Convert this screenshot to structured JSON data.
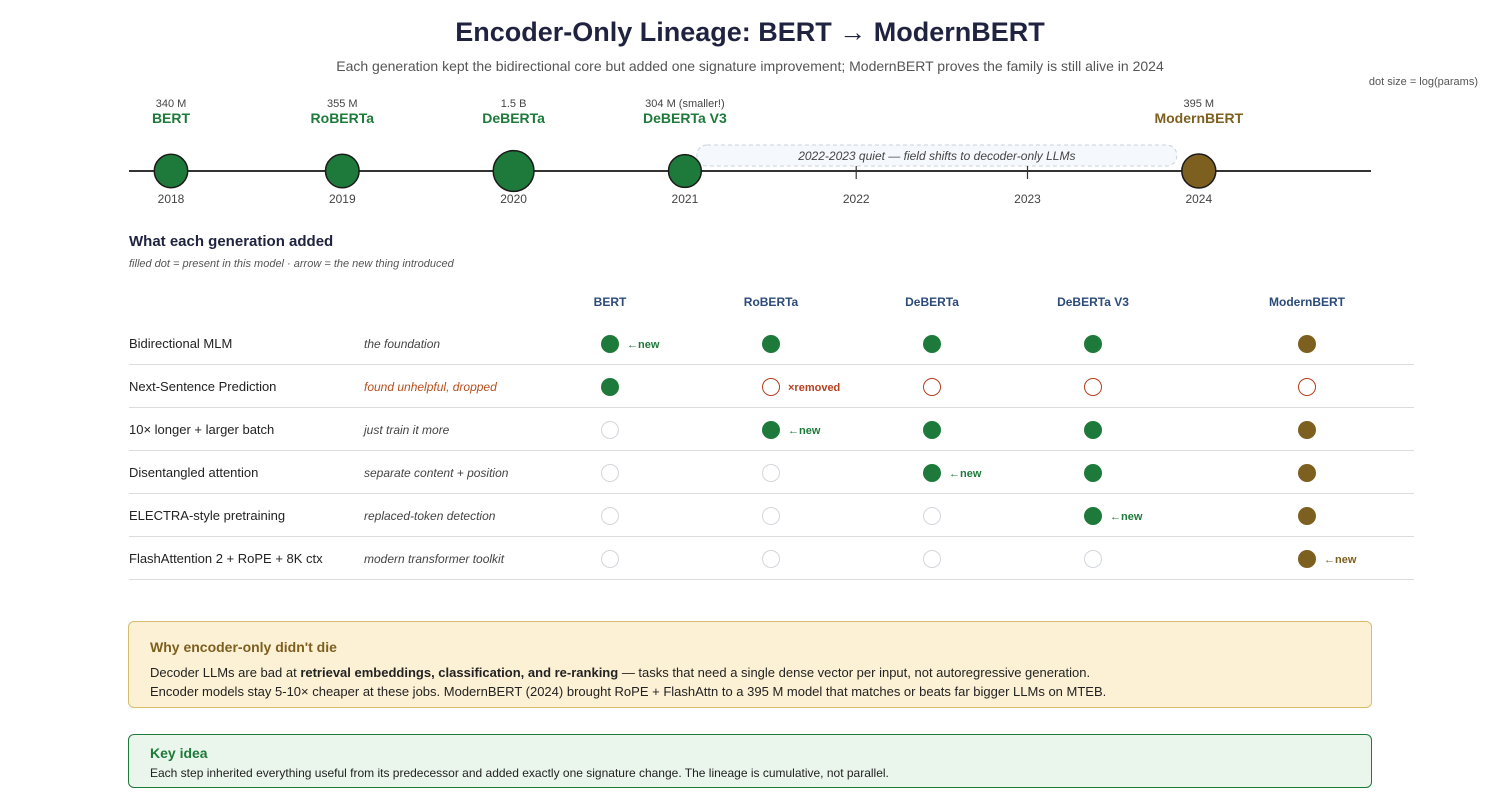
{
  "title": "Encoder-Only Lineage: BERT → ModernBERT",
  "subtitle": "Each generation kept the bidirectional core but added one signature improvement; ModernBERT proves the family is still alive in 2024",
  "legend_note": "dot size = log(params)",
  "timeline": {
    "years": [
      "2018",
      "2019",
      "2020",
      "2021",
      "2022",
      "2023",
      "2024"
    ],
    "models": [
      {
        "name": "BERT",
        "params": "340 M",
        "year": "2018",
        "params_m": 340,
        "color": "#1e7a3a"
      },
      {
        "name": "RoBERTa",
        "params": "355 M",
        "year": "2019",
        "params_m": 355,
        "color": "#1e7a3a"
      },
      {
        "name": "DeBERTa",
        "params": "1.5 B",
        "year": "2020",
        "params_m": 1500,
        "color": "#1e7a3a"
      },
      {
        "name": "DeBERTa V3",
        "params": "304 M (smaller!)",
        "year": "2021",
        "params_m": 304,
        "color": "#1e7a3a"
      },
      {
        "name": "ModernBERT",
        "params": "395 M",
        "year": "2024",
        "params_m": 395,
        "color": "#7d5f1f"
      }
    ],
    "gap_note": "2022-2023 quiet — field shifts to decoder-only LLMs"
  },
  "generations": {
    "title": "What each generation added",
    "note": "filled dot = present in this model · arrow = the new thing introduced",
    "columns": [
      "BERT",
      "RoBERTa",
      "DeBERTa",
      "DeBERTa V3",
      "ModernBERT"
    ],
    "rows": [
      {
        "label": "Bidirectional MLM",
        "note": "the foundation",
        "warn": false,
        "cells": [
          "new",
          "yes",
          "yes",
          "yes",
          "yes"
        ]
      },
      {
        "label": "Next-Sentence Prediction",
        "note": "found unhelpful, dropped",
        "warn": true,
        "cells": [
          "yes",
          "removed",
          "removed",
          "removed",
          "removed"
        ]
      },
      {
        "label": "10× longer + larger batch",
        "note": "just train it more",
        "warn": false,
        "cells": [
          "no",
          "new",
          "yes",
          "yes",
          "yes"
        ]
      },
      {
        "label": "Disentangled attention",
        "note": "separate content + position",
        "warn": false,
        "cells": [
          "no",
          "no",
          "new",
          "yes",
          "yes"
        ]
      },
      {
        "label": "ELECTRA-style pretraining",
        "note": "replaced-token detection",
        "warn": false,
        "cells": [
          "no",
          "no",
          "no",
          "new",
          "yes"
        ]
      },
      {
        "label": "FlashAttention 2 + RoPE + 8K ctx",
        "note": "modern transformer toolkit",
        "warn": false,
        "cells": [
          "no",
          "no",
          "no",
          "no",
          "new"
        ]
      }
    ],
    "new_tag": "←new",
    "removed_tag": "×removed"
  },
  "why": {
    "title": "Why encoder-only didn't die",
    "line1_pre": "Decoder LLMs are bad at ",
    "line1_bold": "retrieval embeddings, classification, and re-ranking",
    "line1_post": " — tasks that need a single dense vector per input, not autoregressive generation.",
    "line2": "Encoder models stay 5-10× cheaper at these jobs. ModernBERT (2024) brought RoPE + FlashAttn to a 395 M model that matches or beats far bigger LLMs on MTEB."
  },
  "key_idea": {
    "title": "Key idea",
    "text": "Each step inherited everything useful from its predecessor and added exactly one signature change. The lineage is cumulative, not parallel."
  },
  "colors": {
    "green": "#1e7a3a",
    "gold": "#7d5f1f",
    "removed": "#b5401f",
    "navy": "#1f2340"
  }
}
